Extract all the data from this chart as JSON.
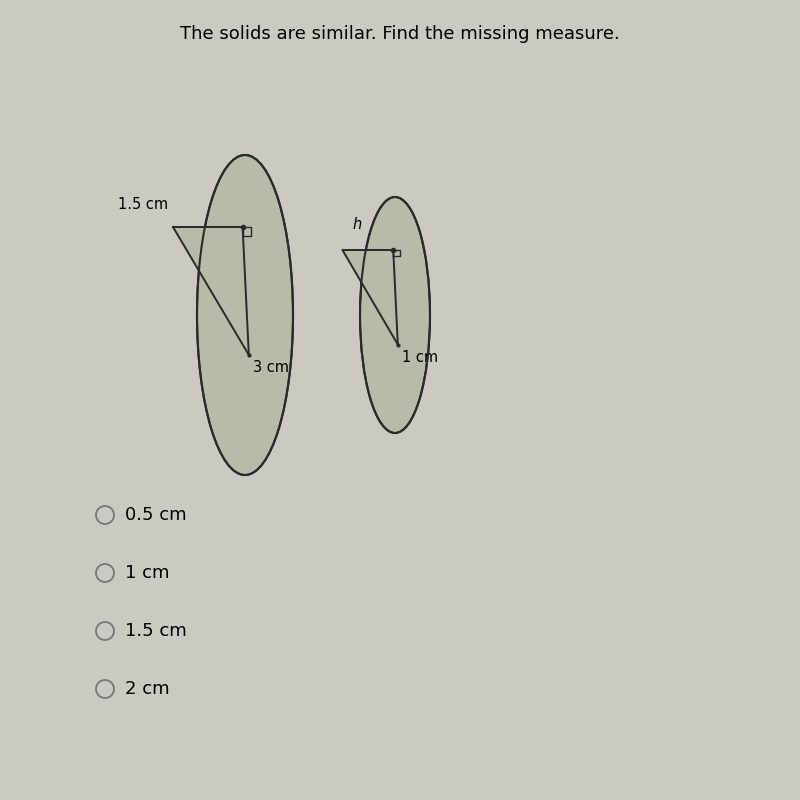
{
  "title": "The solids are similar. Find the missing measure.",
  "title_fontsize": 13,
  "background_color": "#ccc8c2",
  "choices": [
    "0.5 cm",
    "1 cm",
    "1.5 cm",
    "2 cm"
  ],
  "choice_fontsize": 13,
  "label_1_5": "1.5 cm",
  "label_h": "h",
  "label_3cm": "3 cm",
  "label_1cm": "1 cm",
  "ellipse_fill": "#b8bba8",
  "cone_fill": "#b8bba8",
  "edge_color": "#2a2a2a"
}
